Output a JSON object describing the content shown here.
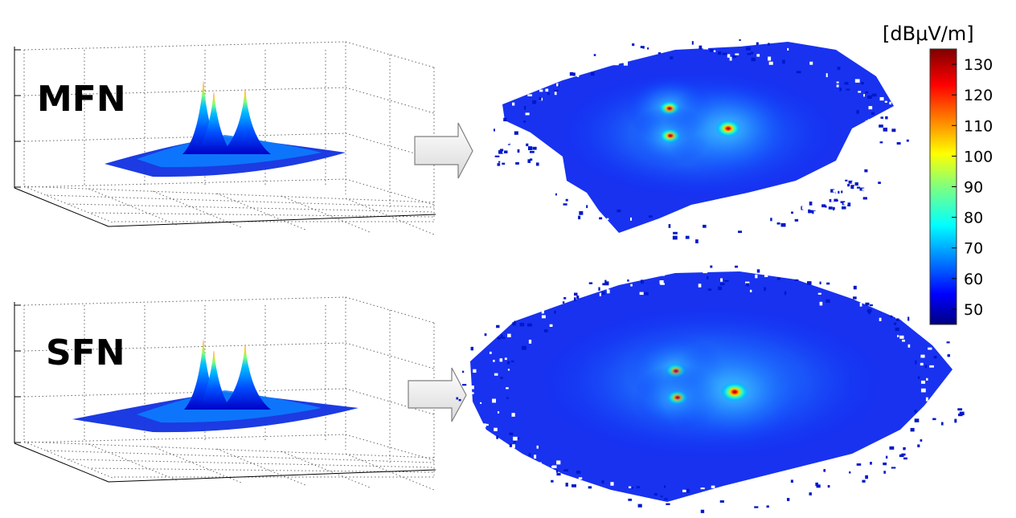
{
  "panels": [
    {
      "label": "MFN"
    },
    {
      "label": "SFN"
    }
  ],
  "colorbar": {
    "unit": "[dBμV/m]",
    "colormap": "jet",
    "ticks": [
      50,
      60,
      70,
      80,
      90,
      100,
      110,
      120,
      130
    ],
    "range": [
      45,
      135
    ]
  },
  "colors": {
    "dark_blue": "#00007f",
    "blue": "#0000ff",
    "cyan": "#00ffff",
    "yellow": "#ffff00",
    "red": "#ff0000",
    "dark_red": "#7f0000"
  },
  "chart_data": [
    {
      "type": "heatmap",
      "title": "",
      "xlabel": "",
      "ylabel": "",
      "grid": true,
      "view": "3d-surface",
      "panel": "MFN",
      "peaks": 3,
      "value_range": [
        45,
        135
      ]
    },
    {
      "type": "heatmap",
      "title": "",
      "xlabel": "",
      "ylabel": "",
      "grid": false,
      "view": "top",
      "panel": "MFN",
      "peaks": 3,
      "value_range": [
        45,
        135
      ]
    },
    {
      "type": "heatmap",
      "title": "",
      "xlabel": "",
      "ylabel": "",
      "grid": true,
      "view": "3d-surface",
      "panel": "SFN",
      "peaks": 3,
      "value_range": [
        45,
        135
      ]
    },
    {
      "type": "heatmap",
      "title": "",
      "xlabel": "",
      "ylabel": "",
      "grid": false,
      "view": "top",
      "panel": "SFN",
      "peaks": 3,
      "value_range": [
        45,
        135
      ]
    }
  ]
}
